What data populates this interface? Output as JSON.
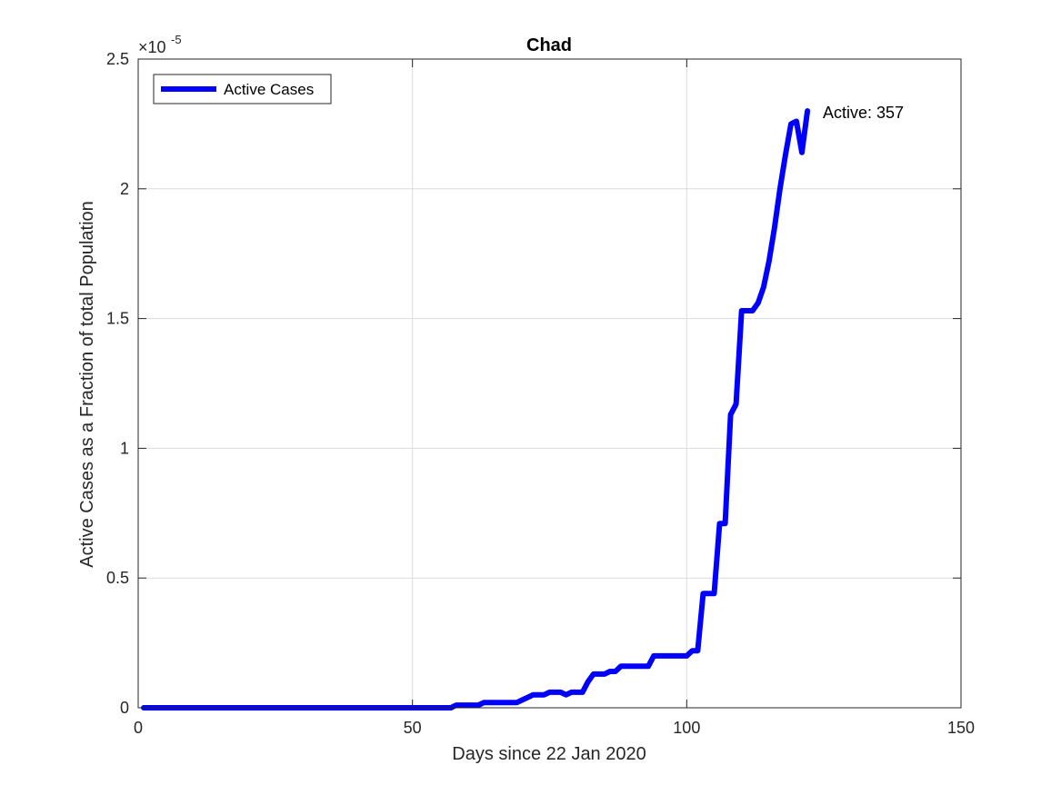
{
  "chart_data": {
    "type": "line",
    "title": "Chad",
    "xlabel": "Days since 22 Jan 2020",
    "ylabel": "Active Cases as a Fraction of total Population",
    "y_exponent_label": "×10",
    "y_exponent_power": "-5",
    "xlim": [
      0,
      150
    ],
    "ylim": [
      0,
      2.5
    ],
    "x_ticks": [
      0,
      50,
      100,
      150
    ],
    "x_tick_labels": [
      "0",
      "50",
      "100",
      "150"
    ],
    "y_ticks": [
      0,
      0.5,
      1,
      1.5,
      2,
      2.5
    ],
    "y_tick_labels": [
      "0",
      "0.5",
      "1",
      "1.5",
      "2",
      "2.5"
    ],
    "grid": true,
    "legend_position": "top-left",
    "annotation": "Active: 357",
    "series": [
      {
        "name": "Active Cases",
        "color": "#0000ff",
        "x": [
          1,
          10,
          20,
          30,
          40,
          50,
          55,
          57,
          58,
          62,
          63,
          64,
          69,
          70,
          71,
          72,
          73,
          74,
          75,
          76,
          77,
          78,
          79,
          80,
          81,
          82,
          83,
          84,
          85,
          86,
          87,
          88,
          89,
          90,
          91,
          92,
          93,
          94,
          95,
          96,
          97,
          98,
          99,
          100,
          101,
          102,
          103,
          104,
          105,
          106,
          107,
          108,
          109,
          110,
          111,
          112,
          113,
          114,
          115,
          116,
          117,
          118,
          119,
          120,
          121,
          122
        ],
        "y": [
          0,
          0,
          0,
          0,
          0,
          0,
          0,
          0,
          0.01,
          0.01,
          0.02,
          0.02,
          0.02,
          0.03,
          0.04,
          0.05,
          0.05,
          0.05,
          0.06,
          0.06,
          0.06,
          0.05,
          0.06,
          0.06,
          0.06,
          0.1,
          0.13,
          0.13,
          0.13,
          0.14,
          0.14,
          0.16,
          0.16,
          0.16,
          0.16,
          0.16,
          0.16,
          0.2,
          0.2,
          0.2,
          0.2,
          0.2,
          0.2,
          0.2,
          0.22,
          0.22,
          0.44,
          0.44,
          0.44,
          0.71,
          0.71,
          1.13,
          1.17,
          1.53,
          1.53,
          1.53,
          1.56,
          1.62,
          1.72,
          1.85,
          2,
          2.13,
          2.25,
          2.26,
          2.14,
          2.3
        ]
      }
    ]
  }
}
